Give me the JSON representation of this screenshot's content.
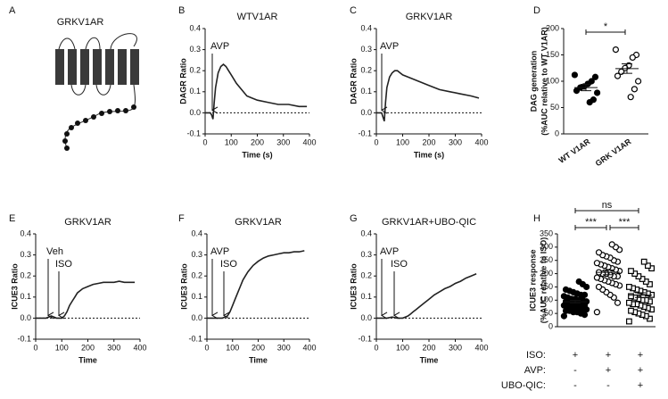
{
  "panel_labels": [
    "A",
    "B",
    "C",
    "D",
    "E",
    "F",
    "G",
    "H"
  ],
  "diagram": {
    "label": "GRKV1AR"
  },
  "chart_data": [
    {
      "type": "line",
      "title": "WTV1AR",
      "xlabel": "Time (s)",
      "ylabel": "DAGR Ratio",
      "x": [
        0,
        10,
        20,
        25,
        30,
        35,
        40,
        50,
        60,
        70,
        80,
        90,
        100,
        120,
        140,
        160,
        180,
        200,
        240,
        280,
        320,
        360,
        390
      ],
      "series": [
        {
          "color": "#222222",
          "values": [
            0,
            0,
            0,
            -0.01,
            -0.03,
            0.05,
            0.12,
            0.19,
            0.22,
            0.23,
            0.22,
            0.2,
            0.18,
            0.14,
            0.11,
            0.08,
            0.07,
            0.06,
            0.05,
            0.04,
            0.04,
            0.03,
            0.03
          ]
        }
      ],
      "xlim": [
        0,
        400
      ],
      "xticks": [
        0,
        100,
        200,
        300,
        400
      ],
      "ylim": [
        -0.1,
        0.4
      ],
      "yticks": [
        -0.1,
        {
          "value": 0,
          "label": "0.0"
        },
        0.1,
        0.2,
        0.3,
        0.4
      ],
      "dashed_zero": true,
      "annotations": [
        {
          "text": "AVP"
        }
      ]
    },
    {
      "type": "line",
      "title": "GRKV1AR",
      "xlabel": "Time (s)",
      "ylabel": "DAGR Ratio",
      "x": [
        0,
        10,
        20,
        25,
        30,
        35,
        40,
        50,
        60,
        70,
        80,
        90,
        100,
        120,
        140,
        160,
        180,
        200,
        240,
        280,
        320,
        360,
        390
      ],
      "series": [
        {
          "color": "#222222",
          "values": [
            0,
            0,
            0,
            -0.02,
            -0.04,
            0.05,
            0.12,
            0.17,
            0.19,
            0.2,
            0.2,
            0.19,
            0.18,
            0.17,
            0.16,
            0.15,
            0.14,
            0.13,
            0.11,
            0.1,
            0.09,
            0.08,
            0.07
          ]
        }
      ],
      "xlim": [
        0,
        400
      ],
      "xticks": [
        0,
        100,
        200,
        300,
        400
      ],
      "ylim": [
        -0.1,
        0.4
      ],
      "yticks": [
        -0.1,
        {
          "value": 0,
          "label": "0.0"
        },
        0.1,
        0.2,
        0.3,
        0.4
      ],
      "dashed_zero": true,
      "annotations": [
        {
          "text": "AVP"
        }
      ]
    },
    {
      "type": "strip",
      "ylabel": [
        "DAG generation",
        "(%AUC relative to WT V1AR)"
      ],
      "categories": [
        "WT V1AR",
        "GRK V1AR"
      ],
      "series": [
        {
          "marker": "filled-circle",
          "color": "#000000",
          "values": [
            112,
            108,
            100,
            95,
            90,
            88,
            82,
            78,
            65,
            60
          ],
          "mean": 88,
          "sem": 6
        },
        {
          "marker": "open-circle",
          "color": "#000000",
          "values": [
            160,
            150,
            145,
            130,
            125,
            118,
            110,
            100,
            85,
            70
          ],
          "mean": 124,
          "sem": 9
        }
      ],
      "ylim": [
        0,
        200
      ],
      "yticks": [
        0,
        50,
        100,
        150,
        200
      ],
      "annotations": [
        {
          "text": "*"
        }
      ]
    },
    {
      "type": "line",
      "title": "GRKV1AR",
      "xlabel": "Time",
      "ylabel": "ICUE3  Ratio",
      "x": [
        0,
        20,
        40,
        60,
        80,
        100,
        110,
        120,
        130,
        140,
        150,
        160,
        180,
        200,
        220,
        240,
        260,
        280,
        300,
        320,
        340,
        360,
        380
      ],
      "series": [
        {
          "color": "#222222",
          "values": [
            0,
            0,
            0,
            0.01,
            0,
            0,
            0.01,
            0.03,
            0.06,
            0.08,
            0.1,
            0.12,
            0.14,
            0.15,
            0.16,
            0.165,
            0.17,
            0.17,
            0.17,
            0.175,
            0.17,
            0.17,
            0.17
          ]
        }
      ],
      "xlim": [
        0,
        400
      ],
      "xticks": [
        0,
        100,
        200,
        300,
        400
      ],
      "ylim": [
        -0.1,
        0.4
      ],
      "yticks": [
        -0.1,
        {
          "value": 0,
          "label": "0.0"
        },
        0.1,
        0.2,
        0.3,
        0.4
      ],
      "dashed_zero": true,
      "annotations": [
        {
          "text": "Veh"
        },
        {
          "text": "ISO"
        }
      ]
    },
    {
      "type": "line",
      "title": "GRKV1AR",
      "xlabel": "Time",
      "ylabel": "ICUE3  Ratio",
      "x": [
        0,
        20,
        40,
        60,
        70,
        80,
        90,
        100,
        110,
        120,
        130,
        140,
        150,
        160,
        180,
        200,
        220,
        240,
        260,
        280,
        300,
        320,
        340,
        360,
        380
      ],
      "series": [
        {
          "color": "#222222",
          "values": [
            0,
            0,
            0,
            0,
            0.005,
            0.01,
            0.03,
            0.06,
            0.09,
            0.12,
            0.15,
            0.18,
            0.2,
            0.22,
            0.25,
            0.27,
            0.285,
            0.295,
            0.3,
            0.305,
            0.31,
            0.31,
            0.315,
            0.315,
            0.32
          ]
        }
      ],
      "xlim": [
        0,
        400
      ],
      "xticks": [
        0,
        100,
        200,
        300,
        400
      ],
      "ylim": [
        -0.1,
        0.4
      ],
      "yticks": [
        -0.1,
        {
          "value": 0,
          "label": "0.0"
        },
        0.1,
        0.2,
        0.3,
        0.4
      ],
      "dashed_zero": true,
      "annotations": [
        {
          "text": "AVP"
        },
        {
          "text": "ISO"
        }
      ]
    },
    {
      "type": "line",
      "title": "GRKV1AR+UBO-QIC",
      "xlabel": "Time",
      "ylabel": "ICUE3  Ratio",
      "x": [
        0,
        20,
        40,
        60,
        80,
        100,
        110,
        120,
        130,
        140,
        150,
        160,
        180,
        200,
        220,
        240,
        260,
        280,
        300,
        320,
        340,
        360,
        380
      ],
      "series": [
        {
          "color": "#222222",
          "values": [
            0,
            0,
            0,
            0.005,
            0,
            0,
            0.005,
            0.01,
            0.02,
            0.03,
            0.04,
            0.05,
            0.07,
            0.09,
            0.11,
            0.125,
            0.14,
            0.15,
            0.165,
            0.175,
            0.19,
            0.2,
            0.21
          ]
        }
      ],
      "xlim": [
        0,
        400
      ],
      "xticks": [
        0,
        100,
        200,
        300,
        400
      ],
      "ylim": [
        -0.1,
        0.4
      ],
      "yticks": [
        -0.1,
        {
          "value": 0,
          "label": "0.0"
        },
        0.1,
        0.2,
        0.3,
        0.4
      ],
      "dashed_zero": true,
      "annotations": [
        {
          "text": "AVP"
        },
        {
          "text": "ISO"
        }
      ]
    },
    {
      "type": "strip",
      "ylabel": [
        "ICUE3 response",
        "(%AUC relative to ISO)"
      ],
      "series": [
        {
          "marker": "filled-circle",
          "color": "#000000",
          "values": [
            40,
            45,
            50,
            55,
            55,
            60,
            60,
            65,
            65,
            70,
            70,
            75,
            75,
            80,
            80,
            85,
            85,
            90,
            90,
            95,
            95,
            100,
            100,
            105,
            105,
            110,
            115,
            120,
            120,
            125,
            130,
            135,
            140,
            150,
            160,
            170
          ],
          "mean": 94,
          "sem": 5
        },
        {
          "marker": "open-circle",
          "color": "#000000",
          "values": [
            55,
            90,
            110,
            120,
            130,
            140,
            150,
            155,
            160,
            165,
            170,
            175,
            180,
            185,
            190,
            190,
            195,
            200,
            200,
            205,
            210,
            215,
            220,
            225,
            230,
            235,
            240,
            245,
            250,
            260,
            265,
            270,
            280,
            290,
            300,
            310
          ],
          "mean": 205,
          "sem": 9
        },
        {
          "marker": "open-square",
          "color": "#000000",
          "values": [
            20,
            30,
            40,
            45,
            50,
            55,
            60,
            65,
            70,
            75,
            80,
            85,
            85,
            90,
            95,
            100,
            100,
            105,
            110,
            115,
            120,
            125,
            130,
            135,
            140,
            145,
            150,
            160,
            170,
            180,
            190,
            200,
            210,
            220,
            230,
            245
          ],
          "mean": 119,
          "sem": 9
        }
      ],
      "ylim": [
        0,
        350
      ],
      "yticks": [
        0,
        50,
        100,
        150,
        200,
        250,
        300,
        350
      ],
      "annotations": [
        {
          "text": "***"
        },
        {
          "text": "***"
        },
        {
          "text": "ns"
        }
      ],
      "conditions": [
        {
          "label": "ISO:",
          "signs": [
            "+",
            "+",
            "+"
          ]
        },
        {
          "label": "AVP:",
          "signs": [
            "-",
            "+",
            "+"
          ]
        },
        {
          "label": "UBO-QIC:",
          "signs": [
            "-",
            "-",
            "+"
          ]
        }
      ]
    }
  ]
}
